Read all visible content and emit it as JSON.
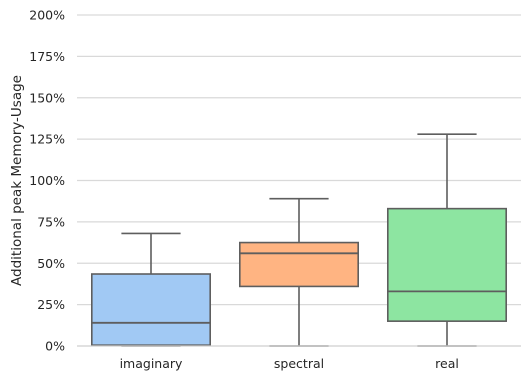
{
  "chart_data": {
    "type": "box",
    "title": "",
    "xlabel": "",
    "ylabel": "Additional peak Memory-Usage",
    "ylim": [
      0,
      200
    ],
    "yticks": [
      0,
      25,
      50,
      75,
      100,
      125,
      150,
      175,
      200
    ],
    "ytick_labels": [
      "0%",
      "25%",
      "50%",
      "75%",
      "100%",
      "125%",
      "150%",
      "175%",
      "200%"
    ],
    "grid": true,
    "categories": [
      "imaginary",
      "spectral",
      "real"
    ],
    "boxes": [
      {
        "name": "imaginary",
        "whisker_low": 0,
        "q1": 0.5,
        "median": 14,
        "q3": 43.5,
        "whisker_high": 68,
        "color": "#a1c9f4"
      },
      {
        "name": "spectral",
        "whisker_low": 0,
        "q1": 36,
        "median": 56,
        "q3": 62.5,
        "whisker_high": 89,
        "color": "#ffb482"
      },
      {
        "name": "real",
        "whisker_low": 0,
        "q1": 15,
        "median": 33,
        "q3": 83,
        "whisker_high": 128,
        "color": "#8de5a1"
      }
    ]
  }
}
